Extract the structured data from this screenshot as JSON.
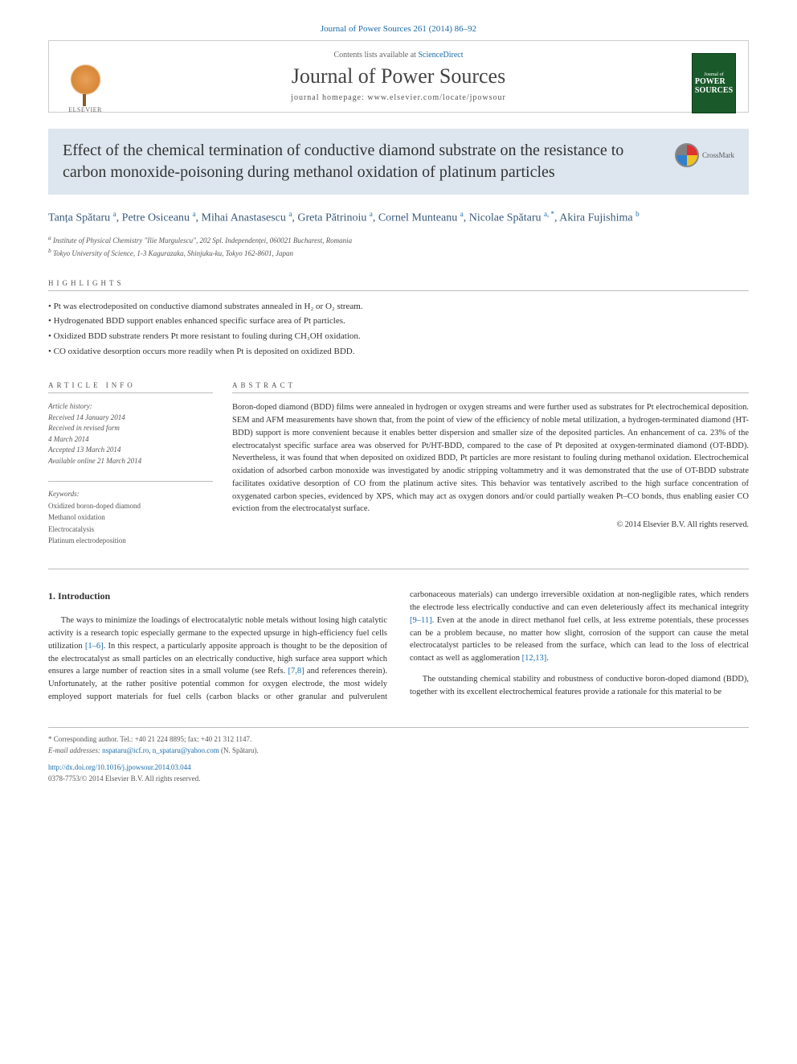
{
  "header": {
    "citation": "Journal of Power Sources 261 (2014) 86–92",
    "contents_prefix": "Contents lists available at ",
    "contents_link": "ScienceDirect",
    "journal_name": "Journal of Power Sources",
    "homepage_prefix": "journal homepage: ",
    "homepage": "www.elsevier.com/locate/jpowsour",
    "elsevier_label": "ELSEVIER",
    "cover_small": "Journal of",
    "cover_large": "POWER SOURCES"
  },
  "title": "Effect of the chemical termination of conductive diamond substrate on the resistance to carbon monoxide-poisoning during methanol oxidation of platinum particles",
  "crossmark": "CrossMark",
  "authors_html": "Tanța Spătaru <sup>a</sup>, Petre Osiceanu <sup>a</sup>, Mihai Anastasescu <sup>a</sup>, Greta Pătrinoiu <sup>a</sup>, Cornel Munteanu <sup>a</sup>, Nicolae Spătaru <sup>a, *</sup>, Akira Fujishima <sup>b</sup>",
  "affiliations": [
    "a Institute of Physical Chemistry \"Ilie Murgulescu\", 202 Spl. Independenței, 060021 Bucharest, Romania",
    "b Tokyo University of Science, 1-3 Kagurazaka, Shinjuku-ku, Tokyo 162-8601, Japan"
  ],
  "highlights_label": "HIGHLIGHTS",
  "highlights": [
    "Pt was electrodeposited on conductive diamond substrates annealed in H₂ or O₂ stream.",
    "Hydrogenated BDD support enables enhanced specific surface area of Pt particles.",
    "Oxidized BDD substrate renders Pt more resistant to fouling during CH₃OH oxidation.",
    "CO oxidative desorption occurs more readily when Pt is deposited on oxidized BDD."
  ],
  "article_info": {
    "label": "ARTICLE INFO",
    "history_label": "Article history:",
    "lines": [
      "Received 14 January 2014",
      "Received in revised form",
      "4 March 2014",
      "Accepted 13 March 2014",
      "Available online 21 March 2014"
    ],
    "keywords_label": "Keywords:",
    "keywords": [
      "Oxidized boron-doped diamond",
      "Methanol oxidation",
      "Electrocatalysis",
      "Platinum electrodeposition"
    ]
  },
  "abstract": {
    "label": "ABSTRACT",
    "text": "Boron-doped diamond (BDD) films were annealed in hydrogen or oxygen streams and were further used as substrates for Pt electrochemical deposition. SEM and AFM measurements have shown that, from the point of view of the efficiency of noble metal utilization, a hydrogen-terminated diamond (HT-BDD) support is more convenient because it enables better dispersion and smaller size of the deposited particles. An enhancement of ca. 23% of the electrocatalyst specific surface area was observed for Pt/HT-BDD, compared to the case of Pt deposited at oxygen-terminated diamond (OT-BDD). Nevertheless, it was found that when deposited on oxidized BDD, Pt particles are more resistant to fouling during methanol oxidation. Electrochemical oxidation of adsorbed carbon monoxide was investigated by anodic stripping voltammetry and it was demonstrated that the use of OT-BDD substrate facilitates oxidative desorption of CO from the platinum active sites. This behavior was tentatively ascribed to the high surface concentration of oxygenated carbon species, evidenced by XPS, which may act as oxygen donors and/or could partially weaken Pt–CO bonds, thus enabling easier CO eviction from the electrocatalyst surface.",
    "copyright": "© 2014 Elsevier B.V. All rights reserved."
  },
  "introduction": {
    "heading": "1. Introduction",
    "para1_a": "The ways to minimize the loadings of electrocatalytic noble metals without losing high catalytic activity is a research topic especially germane to the expected upsurge in high-efficiency fuel cells utilization ",
    "para1_link1": "[1–6]",
    "para1_b": ". In this respect, a particularly apposite approach is thought to be the deposition of the electrocatalyst as small particles on an electrically conductive, high surface area support which ensures a large number of reaction sites in a small volume (see Refs. ",
    "para1_link2": "[7,8]",
    "para1_c": " and references therein). Unfortunately, at the rather positive potential common for oxygen electrode, the most widely employed support materials for fuel cells (carbon blacks or other granular and pulverulent carbonaceous materials) can undergo irreversible oxidation at non-negligible rates, which renders the electrode less electrically conductive and can even deleteriously affect its mechanical integrity ",
    "para1_link3": "[9–11]",
    "para1_d": ". Even at the anode in direct methanol fuel cells, at less extreme potentials, these processes can be a problem because, no matter how slight, corrosion of the support can cause the metal electrocatalyst particles to be released from the surface, which can lead to the loss of electrical contact as well as agglomeration ",
    "para1_link4": "[12,13]",
    "para1_e": ".",
    "para2": "The outstanding chemical stability and robustness of conductive boron-doped diamond (BDD), together with its excellent electrochemical features provide a rationale for this material to be"
  },
  "footnote": {
    "corr": "* Corresponding author. Tel.: +40 21 224 8895; fax: +40 21 312 1147.",
    "email_label": "E-mail addresses: ",
    "email1": "nspataru@icf.ro",
    "email_sep": ", ",
    "email2": "n_spataru@yahoo.com",
    "email_tail": " (N. Spătaru)."
  },
  "footer": {
    "doi": "http://dx.doi.org/10.1016/j.jpowsour.2014.03.044",
    "issn": "0378-7753/© 2014 Elsevier B.V. All rights reserved."
  },
  "colors": {
    "link": "#1a6ba8",
    "title_bar_bg": "#dde6ee",
    "text": "#333333",
    "muted": "#555555",
    "rule": "#bbbbbb"
  }
}
